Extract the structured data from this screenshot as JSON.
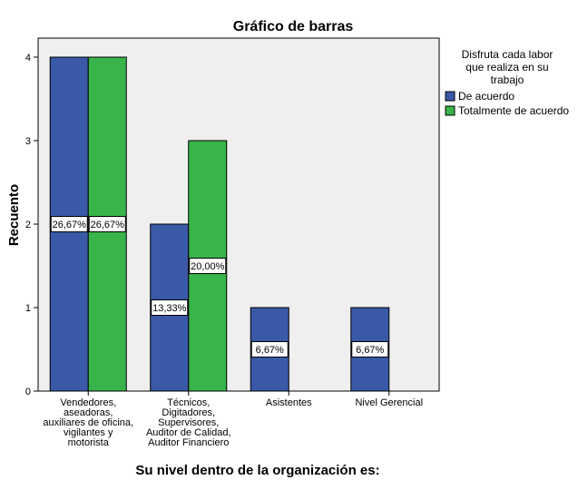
{
  "chart_data": {
    "type": "bar",
    "title": "Gráfico de barras",
    "xlabel": "Su nivel dentro de la organización es:",
    "ylabel": "Recuento",
    "ylim": [
      0,
      4
    ],
    "yticks": [
      0,
      1,
      2,
      3,
      4
    ],
    "grid": false,
    "legend_placement": "right",
    "legend_title": [
      "Disfruta cada labor",
      "que realiza en su",
      "trabajo"
    ],
    "plot_background": "#efefef",
    "categories": [
      [
        "Vendedores,",
        "aseadoras,",
        "auxiliares de oficina,",
        "vigilantes y",
        "motorista"
      ],
      [
        "Técnicos,",
        "Digitadores,",
        "Supervisores,",
        "Auditor de Calidad,",
        "Auditor Financiero"
      ],
      [
        "Asistentes"
      ],
      [
        "Nivel Gerencial"
      ]
    ],
    "series": [
      {
        "name": "De acuerdo",
        "color": "#3a5aa8",
        "values": [
          4,
          2,
          1,
          1
        ],
        "labels": [
          "26,67%",
          "13,33%",
          "6,67%",
          "6,67%"
        ]
      },
      {
        "name": "Totalmente  de acuerdo",
        "color": "#38b44a",
        "values": [
          4,
          3,
          0,
          0
        ],
        "labels": [
          "26,67%",
          "20,00%",
          "",
          ""
        ]
      }
    ]
  }
}
